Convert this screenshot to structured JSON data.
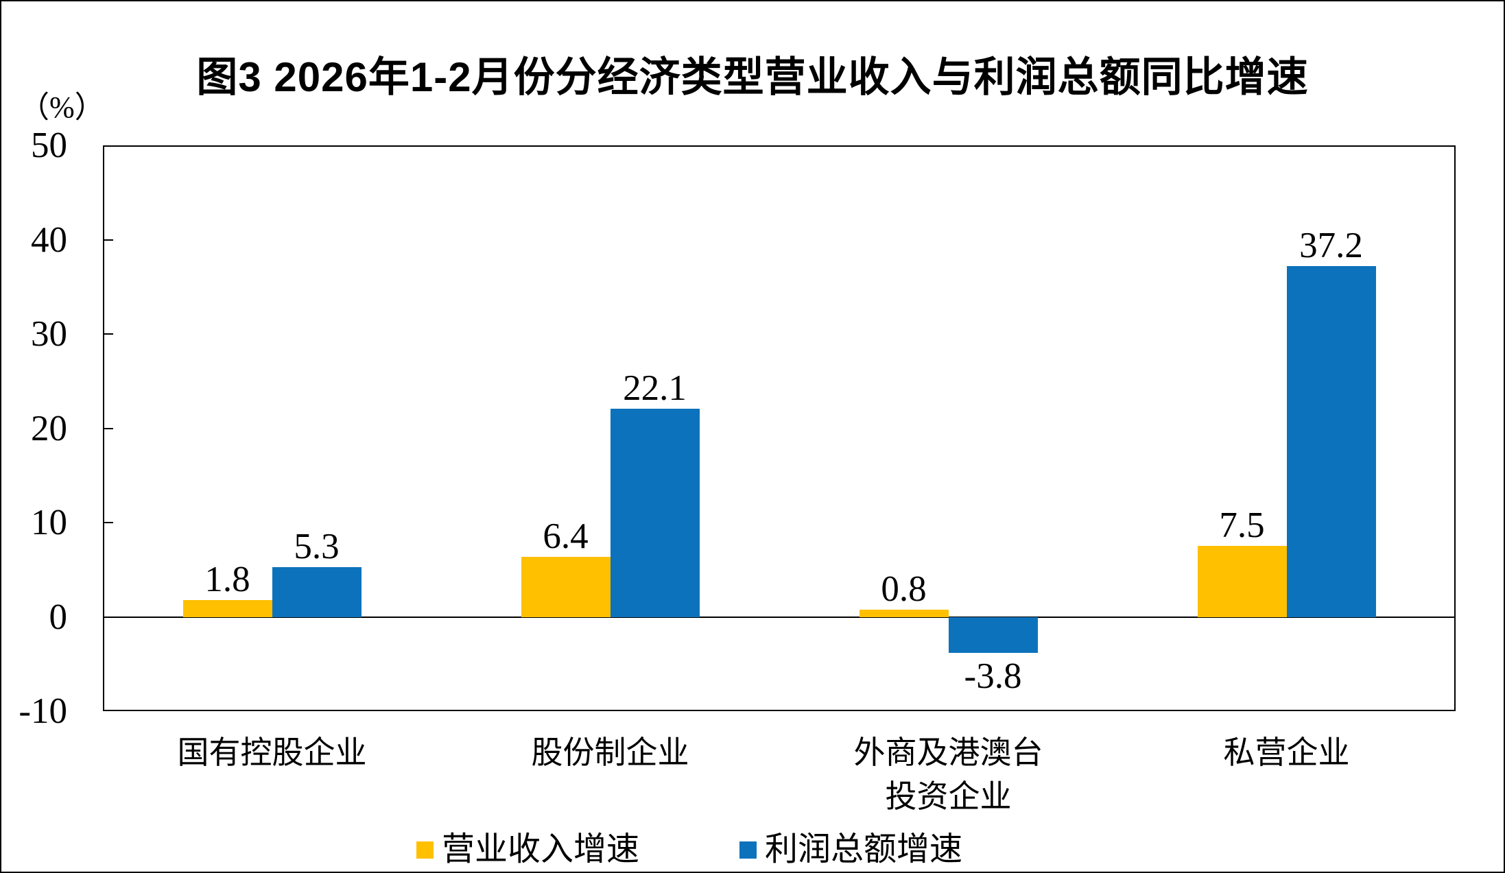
{
  "figure": {
    "title": "图3 2026年1-2月份分经济类型营业收入与利润总额同比增速",
    "unit_label": "（%）"
  },
  "chart_data": {
    "type": "bar",
    "title": "图3 2026年1-2月份分经济类型营业收入与利润总额同比增速",
    "ylabel": "（%）",
    "ylim": [
      -10,
      50
    ],
    "yticks": [
      50,
      40,
      30,
      20,
      10,
      0,
      -10
    ],
    "grid": false,
    "data_labels": true,
    "legend_position": "bottom",
    "categories": [
      "国有控股企业",
      "股份制企业",
      "外商及港澳台\n投资企业",
      "私营企业"
    ],
    "series": [
      {
        "name": "营业收入增速",
        "color": "#FFC000",
        "values": [
          1.8,
          6.4,
          0.8,
          7.5
        ]
      },
      {
        "name": "利润总额增速",
        "color": "#0D72BC",
        "values": [
          5.3,
          22.1,
          -3.8,
          37.2
        ]
      }
    ],
    "axis_color": "#000000"
  }
}
